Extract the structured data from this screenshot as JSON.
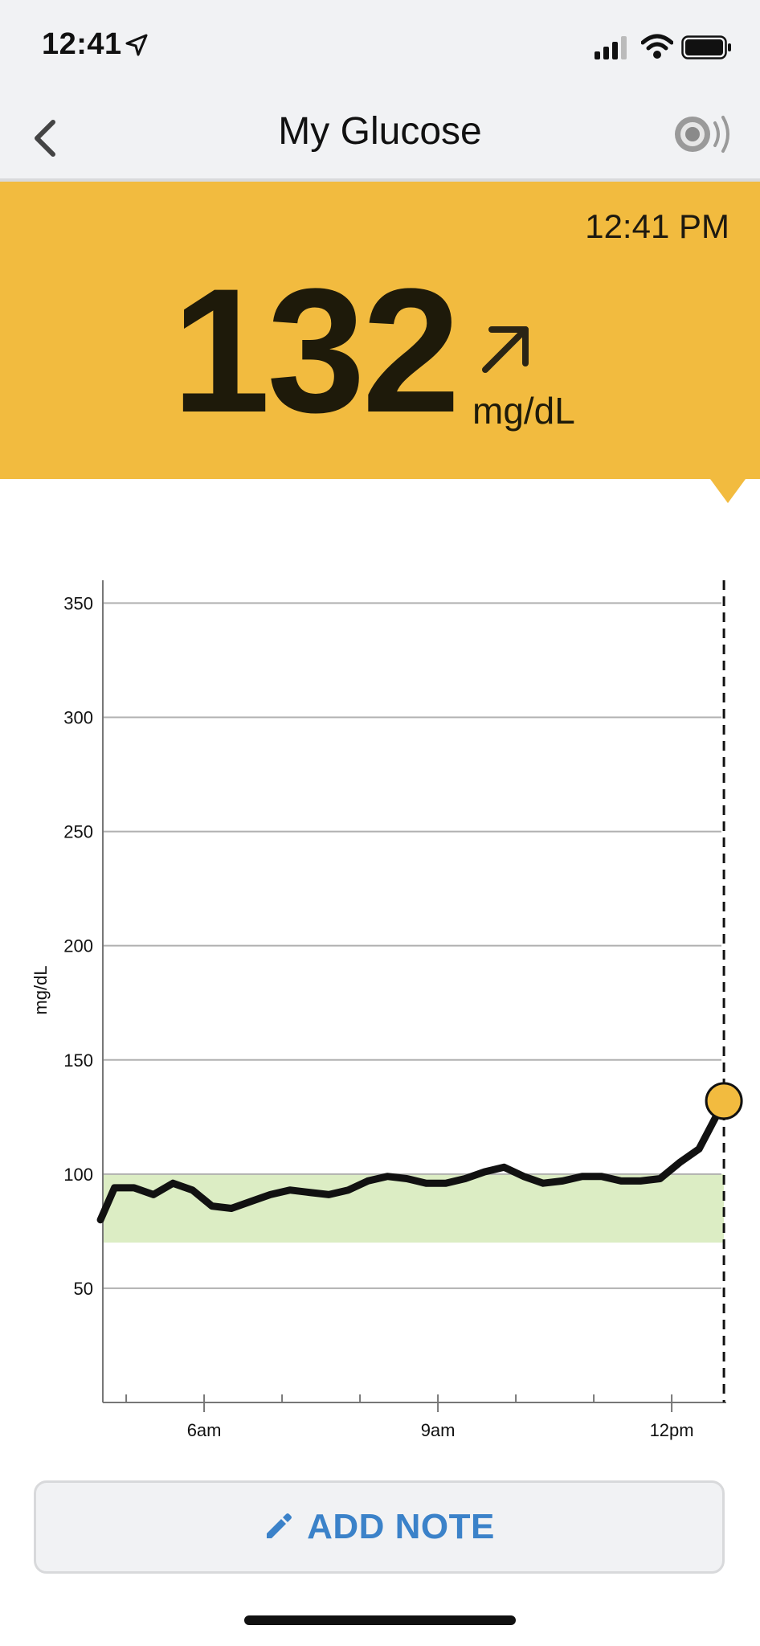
{
  "status_bar": {
    "time": "12:41"
  },
  "nav": {
    "title": "My Glucose"
  },
  "reading": {
    "time": "12:41 PM",
    "value": "132",
    "unit": "mg/dL",
    "trend": "rising"
  },
  "colors": {
    "banner": "#f2bb3f",
    "target_range": "#dcedc4",
    "line": "#111111",
    "current_point": "#f2bb3f",
    "accent": "#3b82c9"
  },
  "chart_data": {
    "type": "line",
    "ylabel": "mg/dL",
    "ylim": [
      0,
      360
    ],
    "y_ticks": [
      350,
      300,
      250,
      200,
      150,
      100,
      50
    ],
    "x_tick_labels": [
      "6am",
      "9am",
      "12pm"
    ],
    "x_range_hours": [
      4.7,
      12.7
    ],
    "target_range": [
      70,
      100
    ],
    "grid": true,
    "current_time_marker": 12.67,
    "series": [
      {
        "x": [
          4.67,
          4.85,
          5.1,
          5.35,
          5.6,
          5.85,
          6.1,
          6.35,
          6.6,
          6.85,
          7.1,
          7.35,
          7.6,
          7.85,
          8.1,
          8.35,
          8.6,
          8.85,
          9.1,
          9.35,
          9.6,
          9.85,
          10.1,
          10.35,
          10.6,
          10.85,
          11.1,
          11.35,
          11.6,
          11.85,
          12.1,
          12.35,
          12.55,
          12.67
        ],
        "y": [
          80,
          94,
          94,
          91,
          96,
          93,
          86,
          85,
          88,
          91,
          93,
          92,
          91,
          93,
          97,
          99,
          98,
          96,
          96,
          98,
          101,
          103,
          99,
          96,
          97,
          99,
          99,
          97,
          97,
          98,
          105,
          111,
          124,
          132
        ]
      }
    ],
    "current_value": 132
  },
  "add_note": {
    "label": "ADD NOTE"
  }
}
